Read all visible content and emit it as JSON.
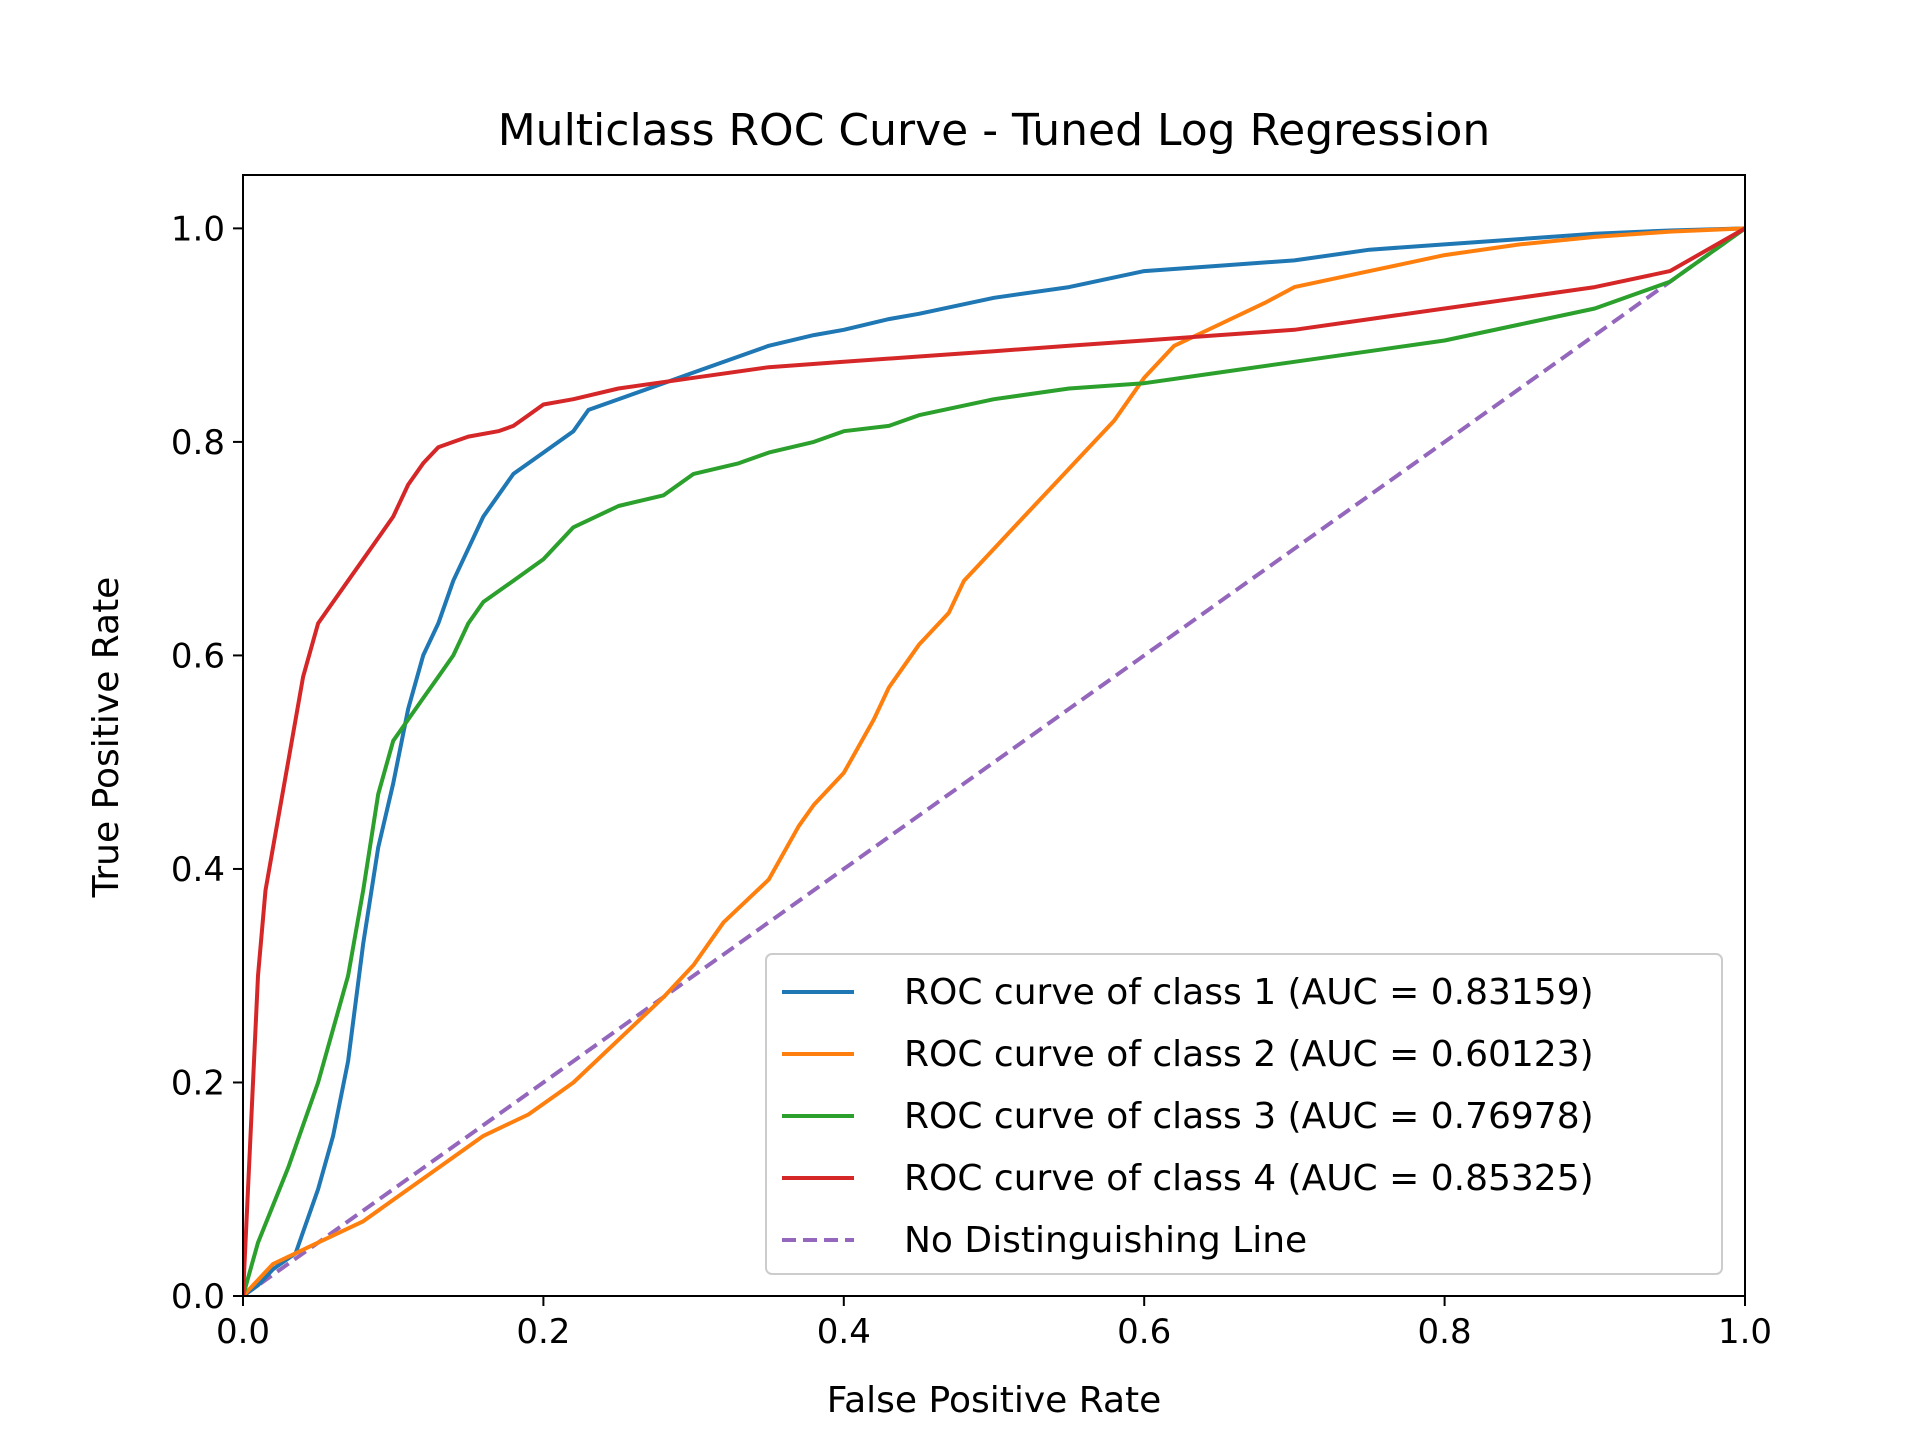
{
  "chart_data": {
    "type": "line",
    "title": "Multiclass ROC Curve - Tuned Log Regression",
    "xlabel": "False Positive Rate",
    "ylabel": "True Positive Rate",
    "xlim": [
      0.0,
      1.0
    ],
    "ylim": [
      0.0,
      1.05
    ],
    "xticks": [
      "0.0",
      "0.2",
      "0.4",
      "0.6",
      "0.8",
      "1.0"
    ],
    "yticks": [
      "0.0",
      "0.2",
      "0.4",
      "0.6",
      "0.8",
      "1.0"
    ],
    "grid": false,
    "legend_position": "bottom-right",
    "series": [
      {
        "name": "ROC curve of class 1 (AUC = 0.83159)",
        "color": "#1f77b4",
        "dash": "solid",
        "x": [
          0.0,
          0.01,
          0.02,
          0.035,
          0.04,
          0.05,
          0.06,
          0.07,
          0.08,
          0.09,
          0.1,
          0.11,
          0.12,
          0.13,
          0.14,
          0.15,
          0.16,
          0.17,
          0.18,
          0.2,
          0.22,
          0.23,
          0.25,
          0.28,
          0.3,
          0.33,
          0.35,
          0.38,
          0.4,
          0.43,
          0.45,
          0.5,
          0.55,
          0.6,
          0.65,
          0.7,
          0.75,
          0.8,
          0.85,
          0.9,
          0.95,
          1.0
        ],
        "y": [
          0.0,
          0.01,
          0.025,
          0.04,
          0.06,
          0.1,
          0.15,
          0.22,
          0.33,
          0.42,
          0.48,
          0.55,
          0.6,
          0.63,
          0.67,
          0.7,
          0.73,
          0.75,
          0.77,
          0.79,
          0.81,
          0.83,
          0.84,
          0.855,
          0.865,
          0.88,
          0.89,
          0.9,
          0.905,
          0.915,
          0.92,
          0.935,
          0.945,
          0.96,
          0.965,
          0.97,
          0.98,
          0.985,
          0.99,
          0.995,
          0.998,
          1.0
        ]
      },
      {
        "name": "ROC curve of class 2 (AUC = 0.60123)",
        "color": "#ff7f0e",
        "dash": "solid",
        "x": [
          0.0,
          0.02,
          0.05,
          0.08,
          0.1,
          0.13,
          0.16,
          0.19,
          0.21,
          0.22,
          0.25,
          0.28,
          0.3,
          0.32,
          0.35,
          0.37,
          0.38,
          0.4,
          0.42,
          0.43,
          0.45,
          0.47,
          0.48,
          0.5,
          0.52,
          0.54,
          0.56,
          0.58,
          0.6,
          0.62,
          0.65,
          0.68,
          0.7,
          0.75,
          0.8,
          0.85,
          0.9,
          0.95,
          1.0
        ],
        "y": [
          0.0,
          0.03,
          0.05,
          0.07,
          0.09,
          0.12,
          0.15,
          0.17,
          0.19,
          0.2,
          0.24,
          0.28,
          0.31,
          0.35,
          0.39,
          0.44,
          0.46,
          0.49,
          0.54,
          0.57,
          0.61,
          0.64,
          0.67,
          0.7,
          0.73,
          0.76,
          0.79,
          0.82,
          0.86,
          0.89,
          0.91,
          0.93,
          0.945,
          0.96,
          0.975,
          0.985,
          0.992,
          0.997,
          1.0
        ]
      },
      {
        "name": "ROC curve of class 3 (AUC = 0.76978)",
        "color": "#2ca02c",
        "dash": "solid",
        "x": [
          0.0,
          0.01,
          0.03,
          0.05,
          0.07,
          0.08,
          0.09,
          0.1,
          0.11,
          0.12,
          0.13,
          0.14,
          0.15,
          0.16,
          0.17,
          0.18,
          0.2,
          0.22,
          0.25,
          0.28,
          0.3,
          0.33,
          0.35,
          0.38,
          0.4,
          0.43,
          0.45,
          0.5,
          0.55,
          0.6,
          0.65,
          0.7,
          0.75,
          0.8,
          0.85,
          0.9,
          0.95,
          1.0
        ],
        "y": [
          0.0,
          0.05,
          0.12,
          0.2,
          0.3,
          0.38,
          0.47,
          0.52,
          0.54,
          0.56,
          0.58,
          0.6,
          0.63,
          0.65,
          0.66,
          0.67,
          0.69,
          0.72,
          0.74,
          0.75,
          0.77,
          0.78,
          0.79,
          0.8,
          0.81,
          0.815,
          0.825,
          0.84,
          0.85,
          0.855,
          0.865,
          0.875,
          0.885,
          0.895,
          0.91,
          0.925,
          0.95,
          1.0
        ]
      },
      {
        "name": "ROC curve of class 4 (AUC = 0.85325)",
        "color": "#d62728",
        "dash": "solid",
        "x": [
          0.0,
          0.005,
          0.01,
          0.015,
          0.02,
          0.03,
          0.04,
          0.05,
          0.06,
          0.07,
          0.08,
          0.09,
          0.1,
          0.11,
          0.12,
          0.13,
          0.14,
          0.15,
          0.17,
          0.18,
          0.19,
          0.2,
          0.22,
          0.25,
          0.3,
          0.35,
          0.4,
          0.45,
          0.5,
          0.55,
          0.6,
          0.65,
          0.7,
          0.75,
          0.8,
          0.85,
          0.9,
          0.95,
          1.0
        ],
        "y": [
          0.0,
          0.15,
          0.3,
          0.38,
          0.42,
          0.5,
          0.58,
          0.63,
          0.65,
          0.67,
          0.69,
          0.71,
          0.73,
          0.76,
          0.78,
          0.795,
          0.8,
          0.805,
          0.81,
          0.815,
          0.825,
          0.835,
          0.84,
          0.85,
          0.86,
          0.87,
          0.875,
          0.88,
          0.885,
          0.89,
          0.895,
          0.9,
          0.905,
          0.915,
          0.925,
          0.935,
          0.945,
          0.96,
          1.0
        ]
      },
      {
        "name": "No Distinguishing Line",
        "color": "#9467bd",
        "dash": "dashed",
        "x": [
          0.0,
          1.0
        ],
        "y": [
          0.0,
          1.0
        ]
      }
    ]
  }
}
